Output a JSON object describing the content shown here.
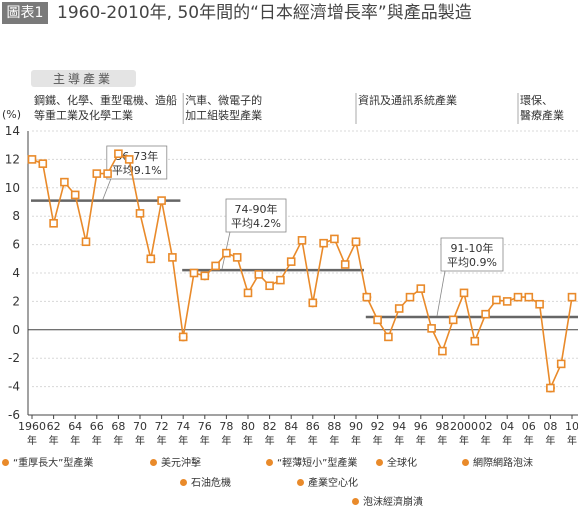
{
  "figure": {
    "label": "圖表1",
    "title": "1960-2010年, 50年間的“日本經濟增長率”與產品製造"
  },
  "chart_data": {
    "type": "line",
    "ylabel": "(%)",
    "ylim": [
      -6,
      14
    ],
    "yticks": [
      "14",
      "12",
      "10",
      "8",
      "6",
      "4",
      "2",
      "0",
      "-2",
      "-4",
      "-6"
    ],
    "xtick_labels": [
      "1960",
      "62",
      "64",
      "66",
      "68",
      "70",
      "72",
      "74",
      "76",
      "78",
      "80",
      "82",
      "84",
      "86",
      "88",
      "90",
      "92",
      "94",
      "96",
      "98",
      "2000",
      "02",
      "04",
      "06",
      "08",
      "10"
    ],
    "xtick_suffix": "年",
    "x": [
      1960,
      1961,
      1962,
      1963,
      1964,
      1965,
      1966,
      1967,
      1968,
      1969,
      1970,
      1971,
      1972,
      1973,
      1974,
      1975,
      1976,
      1977,
      1978,
      1979,
      1980,
      1981,
      1982,
      1983,
      1984,
      1985,
      1986,
      1987,
      1988,
      1989,
      1990,
      1991,
      1992,
      1993,
      1994,
      1995,
      1996,
      1997,
      1998,
      1999,
      2000,
      2001,
      2002,
      2003,
      2004,
      2005,
      2006,
      2007,
      2008,
      2009,
      2010
    ],
    "series": [
      {
        "values": [
          12.0,
          11.7,
          7.5,
          10.4,
          9.5,
          6.2,
          11.0,
          11.0,
          12.4,
          12.0,
          8.2,
          5.0,
          9.1,
          5.1,
          -0.5,
          4.0,
          3.8,
          4.5,
          5.4,
          5.1,
          2.6,
          3.9,
          3.1,
          3.5,
          4.8,
          6.3,
          1.9,
          6.1,
          6.4,
          4.6,
          6.2,
          2.3,
          0.7,
          -0.5,
          1.5,
          2.3,
          2.9,
          0.1,
          -1.5,
          0.7,
          2.6,
          -0.8,
          1.1,
          2.1,
          2.0,
          2.3,
          2.3,
          1.8,
          -4.1,
          -2.4,
          2.3
        ]
      }
    ],
    "averages": [
      {
        "label_period": "56-73年",
        "label_value": "平均9.1%",
        "value": 9.1,
        "from": 1960,
        "to": 1973
      },
      {
        "label_period": "74-90年",
        "label_value": "平均4.2%",
        "value": 4.2,
        "from": 1974,
        "to": 1990
      },
      {
        "label_period": "91-10年",
        "label_value": "平均0.9%",
        "value": 0.9,
        "from": 1991,
        "to": 2010
      }
    ],
    "lead_industry_header": "主導產業",
    "eras": [
      {
        "from": 1960,
        "to": 1974,
        "lines": [
          "鋼鐵、化學、重型電機、造船",
          "等重工業及化學工業"
        ]
      },
      {
        "from": 1974,
        "to": 1990,
        "lines": [
          "汽車、微電子的",
          "加工組裝型產業"
        ]
      },
      {
        "from": 1990,
        "to": 2005,
        "lines": [
          "資訊及通訊系統產業"
        ]
      },
      {
        "from": 2005,
        "to": 2010,
        "lines": [
          "環保、",
          "醫療產業"
        ]
      }
    ],
    "event_markers": [
      {
        "year": 1971,
        "value": 5.0
      },
      {
        "year": 1974,
        "value": -0.5
      },
      {
        "year": 1976,
        "value": 3.8
      },
      {
        "year": 1986,
        "value": 1.9
      },
      {
        "year": 1990,
        "value": 6.2
      },
      {
        "year": 1991,
        "value": 2.3
      },
      {
        "year": 2008,
        "value": -4.1
      }
    ],
    "legend": [
      "“重厚長大”型產業",
      "美元沖擊",
      "“輕薄短小”型產業",
      "全球化",
      "網際網路泡沫",
      "石油危機",
      "產業空心化",
      "泡沫經濟崩潰"
    ],
    "colors": {
      "line": "#e98a2a",
      "avg": "#666666",
      "grid": "#d8d8d8",
      "axis": "#444444"
    }
  }
}
